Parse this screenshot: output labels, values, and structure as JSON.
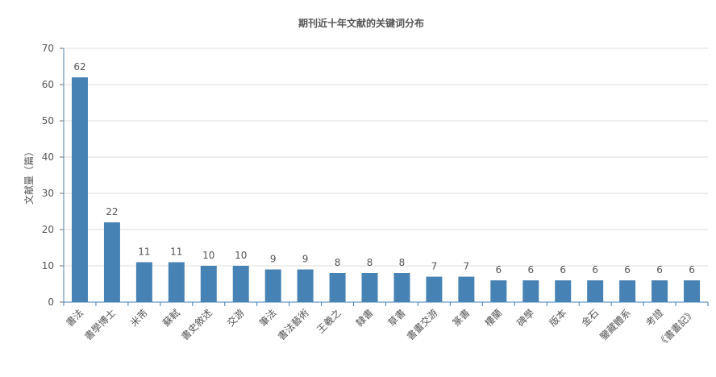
{
  "chart_data": {
    "type": "bar",
    "title": "期刊近十年文献的关键词分布",
    "ylabel": "文献量（篇）",
    "xlabel": "",
    "ylim": [
      0,
      70
    ],
    "yticks": [
      0,
      10,
      20,
      30,
      40,
      50,
      60,
      70
    ],
    "grid": true,
    "bar_color": "#4682b4",
    "categories": [
      "書法",
      "書學博士",
      "米芾",
      "蘇軾",
      "書史敘述",
      "交游",
      "筆法",
      "書法藝術",
      "王羲之",
      "隸書",
      "草書",
      "書畫交游",
      "篆書",
      "樓蘭",
      "碑學",
      "版本",
      "金石",
      "鑒藏體系",
      "考證",
      "《書畫記》"
    ],
    "values": [
      62,
      22,
      11,
      11,
      10,
      10,
      9,
      9,
      8,
      8,
      8,
      7,
      7,
      6,
      6,
      6,
      6,
      6,
      6,
      6
    ]
  }
}
